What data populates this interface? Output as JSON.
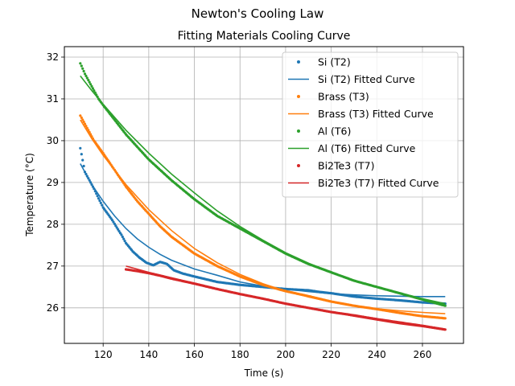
{
  "chart_data": {
    "type": "scatter",
    "suptitle": "Newton's Cooling Law",
    "title": "Fitting Materials Cooling Curve",
    "xlabel": "Time (s)",
    "ylabel": "Temperature ($^\\circ C$)",
    "ylabel_display": "Temperature (°C)",
    "xlim": [
      103,
      278
    ],
    "ylim": [
      25.15,
      32.25
    ],
    "xticks": [
      120,
      140,
      160,
      180,
      200,
      220,
      240,
      260
    ],
    "yticks": [
      26,
      27,
      28,
      29,
      30,
      31,
      32
    ],
    "grid": true,
    "legend_position": "upper right",
    "series": [
      {
        "name": "Si (T2)",
        "kind": "points",
        "color": "#1f77b4",
        "x": [
          110,
          112,
          114,
          116,
          118,
          120,
          122,
          124,
          126,
          128,
          130,
          133,
          136,
          139,
          142,
          145,
          148,
          151,
          155,
          160,
          170,
          180,
          190,
          200,
          210,
          215,
          220,
          230,
          240,
          250,
          260,
          270
        ],
        "y": [
          29.82,
          29.25,
          29.05,
          28.85,
          28.62,
          28.4,
          28.25,
          28.1,
          27.92,
          27.75,
          27.55,
          27.35,
          27.2,
          27.08,
          27.02,
          27.1,
          27.05,
          26.9,
          26.82,
          26.75,
          26.62,
          26.55,
          26.5,
          26.45,
          26.42,
          26.38,
          26.35,
          26.27,
          26.22,
          26.18,
          26.13,
          26.1
        ]
      },
      {
        "name": "Si (T2) Fitted Curve",
        "kind": "line",
        "color": "#1f77b4",
        "x": [
          110,
          115,
          120,
          125,
          130,
          135,
          140,
          145,
          150,
          160,
          170,
          180,
          190,
          200,
          210,
          220,
          230,
          240,
          250,
          260,
          270
        ],
        "y": [
          29.45,
          28.95,
          28.55,
          28.2,
          27.9,
          27.65,
          27.45,
          27.28,
          27.14,
          26.93,
          26.78,
          26.62,
          26.52,
          26.45,
          26.39,
          26.34,
          26.31,
          26.29,
          26.28,
          26.27,
          26.27
        ]
      },
      {
        "name": "Brass (T3)",
        "kind": "points",
        "color": "#ff7f0e",
        "x": [
          110,
          113,
          116,
          120,
          125,
          130,
          135,
          140,
          145,
          150,
          160,
          170,
          180,
          190,
          200,
          210,
          220,
          230,
          240,
          250,
          260,
          270
        ],
        "y": [
          30.6,
          30.3,
          30.0,
          29.7,
          29.3,
          28.9,
          28.55,
          28.25,
          27.95,
          27.7,
          27.3,
          27.0,
          26.75,
          26.55,
          26.4,
          26.28,
          26.15,
          26.05,
          25.97,
          25.88,
          25.8,
          25.75
        ]
      },
      {
        "name": "Brass (T3) Fitted Curve",
        "kind": "line",
        "color": "#ff7f0e",
        "x": [
          110,
          115,
          120,
          130,
          140,
          150,
          160,
          170,
          180,
          190,
          200,
          210,
          220,
          230,
          240,
          250,
          260,
          270
        ],
        "y": [
          30.5,
          30.05,
          29.65,
          28.95,
          28.35,
          27.85,
          27.42,
          27.08,
          26.8,
          26.58,
          26.4,
          26.26,
          26.14,
          26.05,
          25.98,
          25.93,
          25.89,
          25.86
        ]
      },
      {
        "name": "Al (T6)",
        "kind": "points",
        "color": "#2ca02c",
        "x": [
          110,
          112,
          114,
          116,
          118,
          120,
          125,
          130,
          135,
          140,
          145,
          150,
          160,
          170,
          180,
          190,
          200,
          210,
          220,
          230,
          240,
          250,
          260,
          270
        ],
        "y": [
          31.85,
          31.6,
          31.4,
          31.2,
          31.0,
          30.85,
          30.5,
          30.15,
          29.85,
          29.55,
          29.3,
          29.05,
          28.6,
          28.2,
          27.9,
          27.6,
          27.3,
          27.05,
          26.85,
          26.65,
          26.5,
          26.35,
          26.2,
          26.05
        ]
      },
      {
        "name": "Al (T6) Fitted Curve",
        "kind": "line",
        "color": "#2ca02c",
        "x": [
          110,
          115,
          120,
          130,
          140,
          150,
          160,
          170,
          180,
          190,
          200,
          210,
          220,
          230,
          240,
          250,
          260,
          270
        ],
        "y": [
          31.55,
          31.2,
          30.87,
          30.25,
          29.7,
          29.2,
          28.75,
          28.32,
          27.95,
          27.62,
          27.32,
          27.07,
          26.85,
          26.66,
          26.5,
          26.35,
          26.22,
          26.1
        ]
      },
      {
        "name": "Bi2Te3 (T7)",
        "kind": "points",
        "color": "#d62728",
        "x": [
          130,
          135,
          140,
          145,
          150,
          160,
          170,
          180,
          190,
          200,
          210,
          220,
          230,
          240,
          250,
          260,
          270
        ],
        "y": [
          26.92,
          26.88,
          26.83,
          26.77,
          26.7,
          26.58,
          26.45,
          26.33,
          26.22,
          26.1,
          26.0,
          25.9,
          25.82,
          25.73,
          25.65,
          25.57,
          25.48
        ]
      },
      {
        "name": "Bi2Te3 (T7) Fitted Curve",
        "kind": "line",
        "color": "#d62728",
        "x": [
          130,
          140,
          150,
          160,
          170,
          180,
          190,
          200,
          210,
          220,
          230,
          240,
          250,
          260,
          270
        ],
        "y": [
          27.0,
          26.85,
          26.72,
          26.59,
          26.46,
          26.34,
          26.22,
          26.11,
          26.0,
          25.9,
          25.8,
          25.71,
          25.62,
          25.55,
          25.47
        ]
      }
    ]
  }
}
